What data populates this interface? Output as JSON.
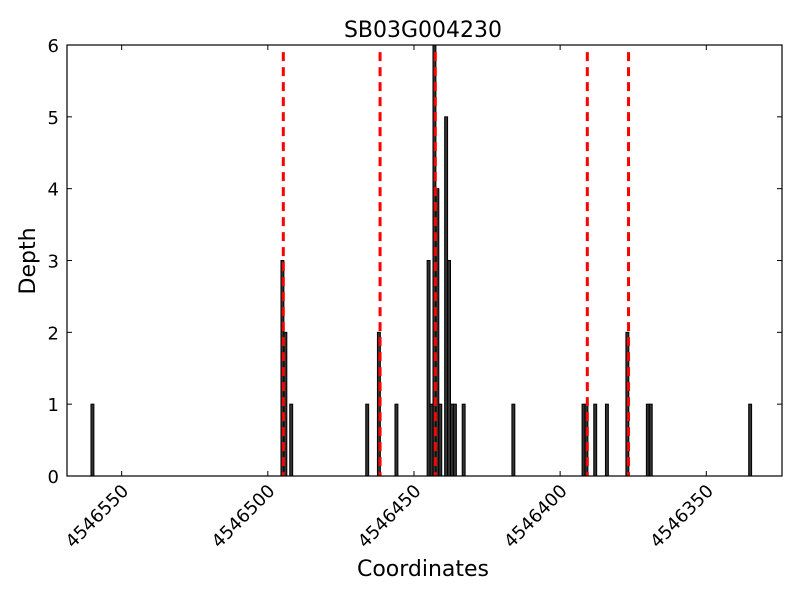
{
  "chart_data": {
    "type": "bar",
    "title": "SB03G004230",
    "xlabel": "Coordinates",
    "ylabel": "Depth",
    "x_axis_reversed": true,
    "xlim": [
      4546568.7,
      4546324.1
    ],
    "ylim": [
      0,
      6
    ],
    "xticks": [
      4546550,
      4546500,
      4546450,
      4546400,
      4546350
    ],
    "yticks": [
      0,
      1,
      2,
      3,
      4,
      5,
      6
    ],
    "grid": false,
    "bar_color": "#333333",
    "bar_edge_color": "#000000",
    "bars": [
      {
        "x": 4546560,
        "depth": 1
      },
      {
        "x": 4546495,
        "depth": 3
      },
      {
        "x": 4546494,
        "depth": 2
      },
      {
        "x": 4546492,
        "depth": 1
      },
      {
        "x": 4546466,
        "depth": 1
      },
      {
        "x": 4546462,
        "depth": 2
      },
      {
        "x": 4546456,
        "depth": 1
      },
      {
        "x": 4546445,
        "depth": 3
      },
      {
        "x": 4546444,
        "depth": 1
      },
      {
        "x": 4546443,
        "depth": 6
      },
      {
        "x": 4546442,
        "depth": 4
      },
      {
        "x": 4546441,
        "depth": 1
      },
      {
        "x": 4546439,
        "depth": 5
      },
      {
        "x": 4546438,
        "depth": 3
      },
      {
        "x": 4546437,
        "depth": 1
      },
      {
        "x": 4546436,
        "depth": 1
      },
      {
        "x": 4546433,
        "depth": 1
      },
      {
        "x": 4546416,
        "depth": 1
      },
      {
        "x": 4546392,
        "depth": 1
      },
      {
        "x": 4546391,
        "depth": 1
      },
      {
        "x": 4546388,
        "depth": 1
      },
      {
        "x": 4546384,
        "depth": 1
      },
      {
        "x": 4546377,
        "depth": 2
      },
      {
        "x": 4546370,
        "depth": 1
      },
      {
        "x": 4546369,
        "depth": 1
      },
      {
        "x": 4546335,
        "depth": 1
      }
    ],
    "vlines": {
      "color": "#ff0000",
      "style": "dashed",
      "ymax": 5.9,
      "x": [
        4546494.7,
        4546461.6,
        4546442.7,
        4546390.7,
        4546376.6
      ]
    }
  }
}
